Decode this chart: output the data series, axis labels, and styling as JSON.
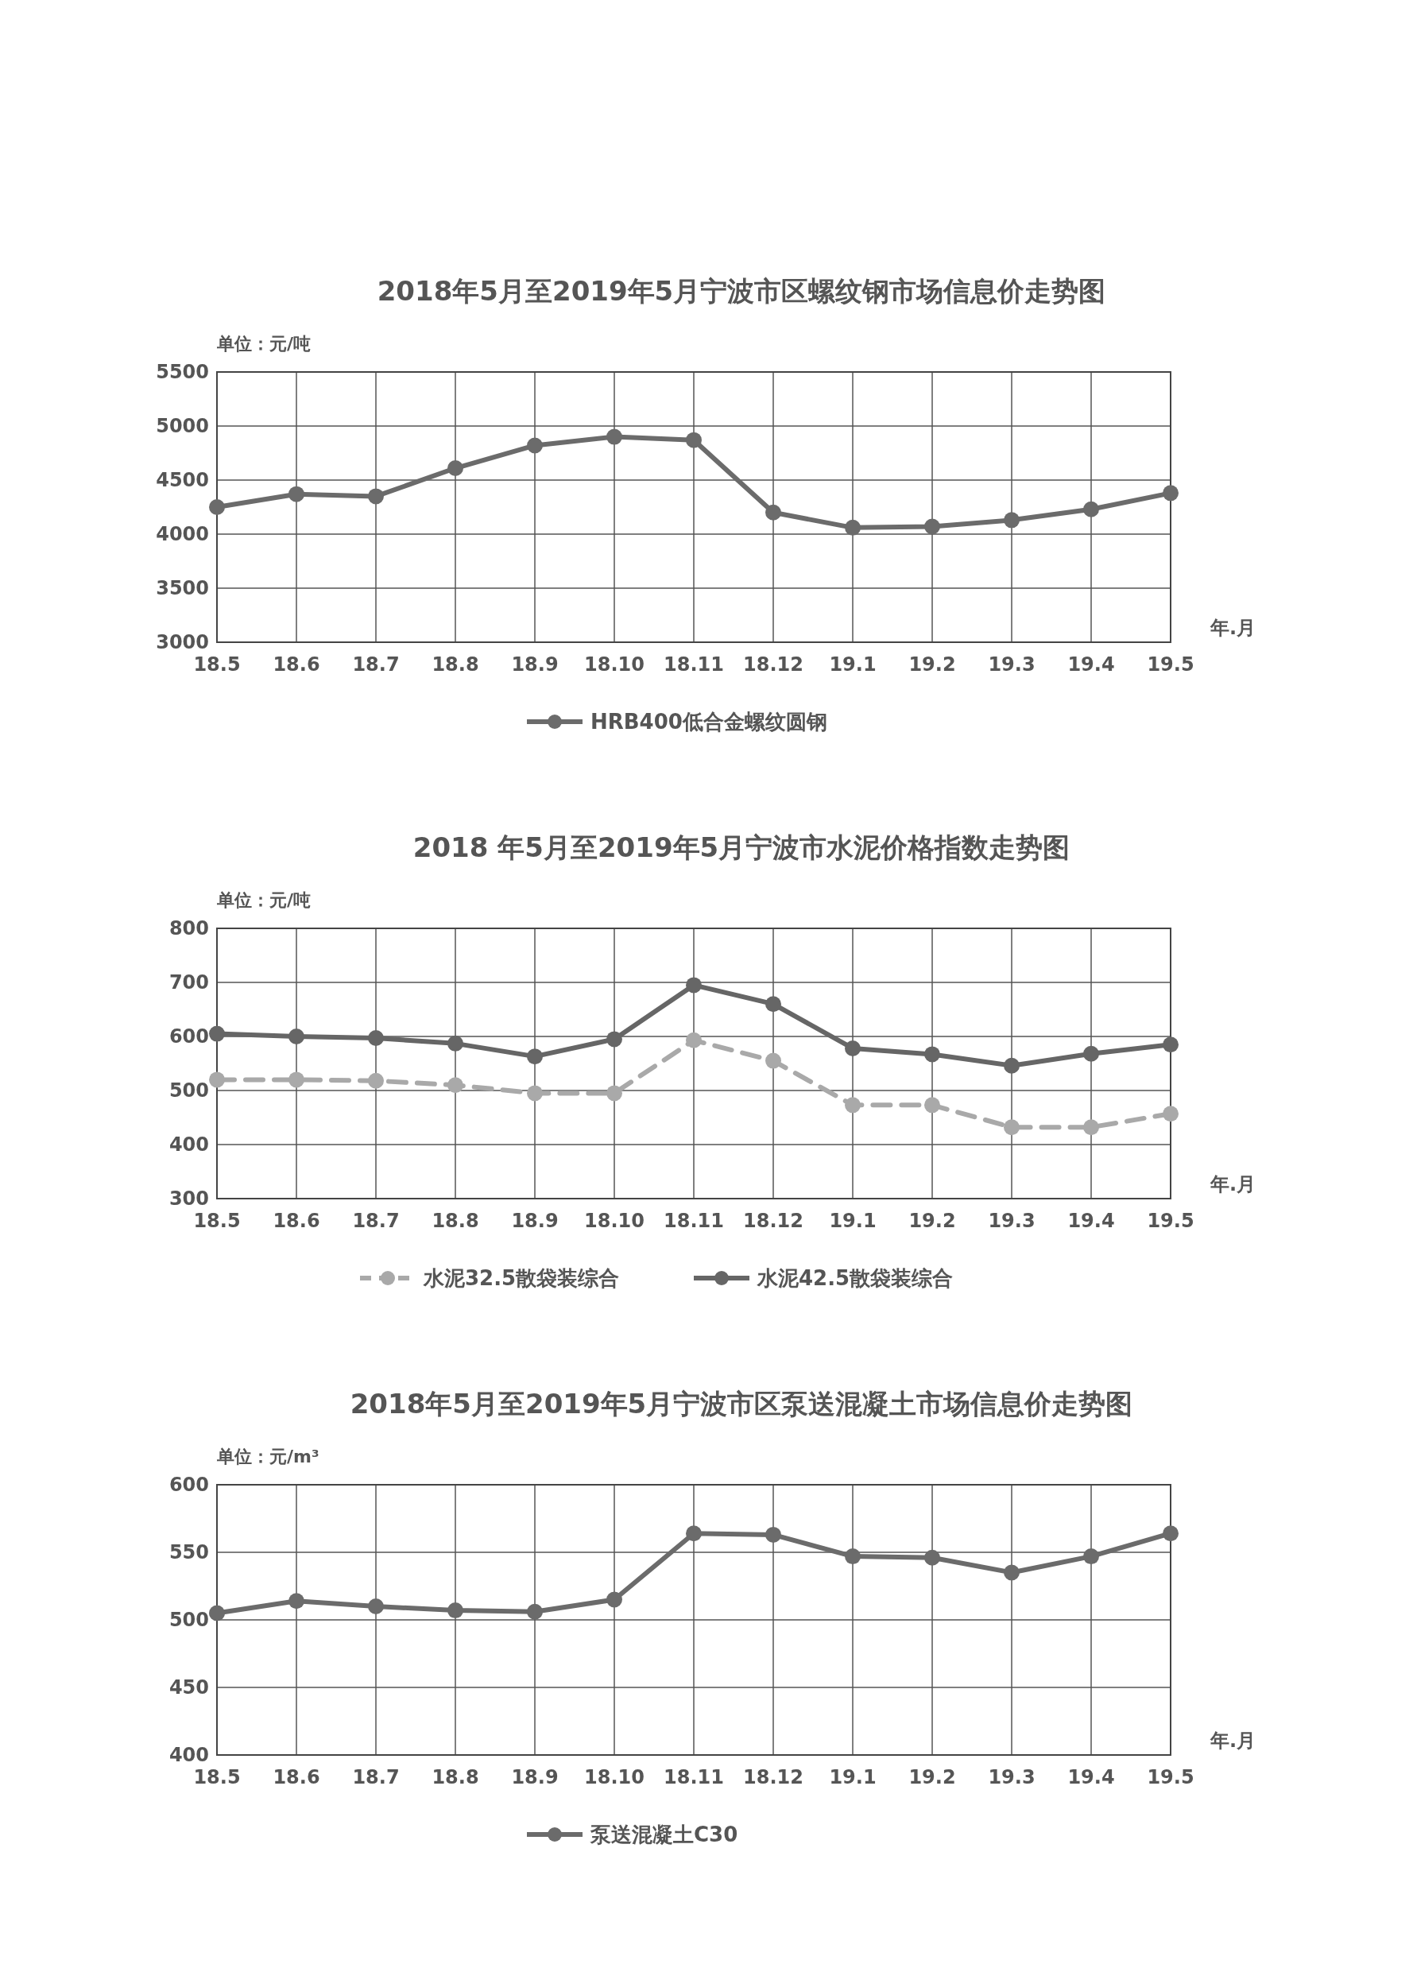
{
  "chart_data": [
    {
      "type": "line",
      "title": "2018年5月至2019年5月宁波市区螺纹钢市场信息价走势图",
      "annotations": [
        "单位：元/吨"
      ],
      "xlabel": "年.月",
      "categories": [
        "18.5",
        "18.6",
        "18.7",
        "18.8",
        "18.9",
        "18.10",
        "18.11",
        "18.12",
        "19.1",
        "19.2",
        "19.3",
        "19.4",
        "19.5"
      ],
      "series": [
        {
          "name": "HRB400低合金螺纹圆钢",
          "color": "#6b6b6b",
          "values": [
            4250,
            4370,
            4350,
            4610,
            4820,
            4900,
            4870,
            4200,
            4060,
            4070,
            4130,
            4230,
            4380
          ]
        }
      ],
      "ylim": [
        3000,
        5500
      ],
      "yticks": [
        3000,
        3500,
        4000,
        4500,
        5000,
        5500
      ],
      "grid": true,
      "legend": "bottom",
      "marker": "circle",
      "line_style": "solid"
    },
    {
      "type": "line",
      "title": "2018 年5月至2019年5月宁波市水泥价格指数走势图",
      "annotations": [
        "单位：元/吨"
      ],
      "xlabel": "年.月",
      "categories": [
        "18.5",
        "18.6",
        "18.7",
        "18.8",
        "18.9",
        "18.10",
        "18.11",
        "18.12",
        "19.1",
        "19.2",
        "19.3",
        "19.4",
        "19.5"
      ],
      "series": [
        {
          "name": "水泥32.5散袋装综合",
          "color": "#a9a9a9",
          "line_style": "dashed",
          "values": [
            520,
            520,
            518,
            510,
            495,
            495,
            593,
            555,
            473,
            473,
            432,
            432,
            457
          ]
        },
        {
          "name": "水泥42.5散袋装综合",
          "color": "#666666",
          "line_style": "solid",
          "values": [
            605,
            600,
            597,
            587,
            563,
            595,
            695,
            660,
            578,
            567,
            546,
            568,
            585
          ]
        }
      ],
      "ylim": [
        300,
        800
      ],
      "yticks": [
        300,
        400,
        500,
        600,
        700,
        800
      ],
      "grid": true,
      "legend": "bottom",
      "marker": "circle"
    },
    {
      "type": "line",
      "title": "2018年5月至2019年5月宁波市区泵送混凝土市场信息价走势图",
      "annotations": [
        "单位：元/m³"
      ],
      "xlabel": "年.月",
      "categories": [
        "18.5",
        "18.6",
        "18.7",
        "18.8",
        "18.9",
        "18.10",
        "18.11",
        "18.12",
        "19.1",
        "19.2",
        "19.3",
        "19.4",
        "19.5"
      ],
      "series": [
        {
          "name": "泵送混凝土C30",
          "color": "#6b6b6b",
          "values": [
            505,
            514,
            510,
            507,
            506,
            515,
            564,
            563,
            547,
            546,
            535,
            547,
            564
          ]
        }
      ],
      "ylim": [
        400,
        600
      ],
      "yticks": [
        400,
        450,
        500,
        550,
        600
      ],
      "grid": true,
      "legend": "bottom",
      "marker": "circle",
      "line_style": "solid"
    }
  ]
}
